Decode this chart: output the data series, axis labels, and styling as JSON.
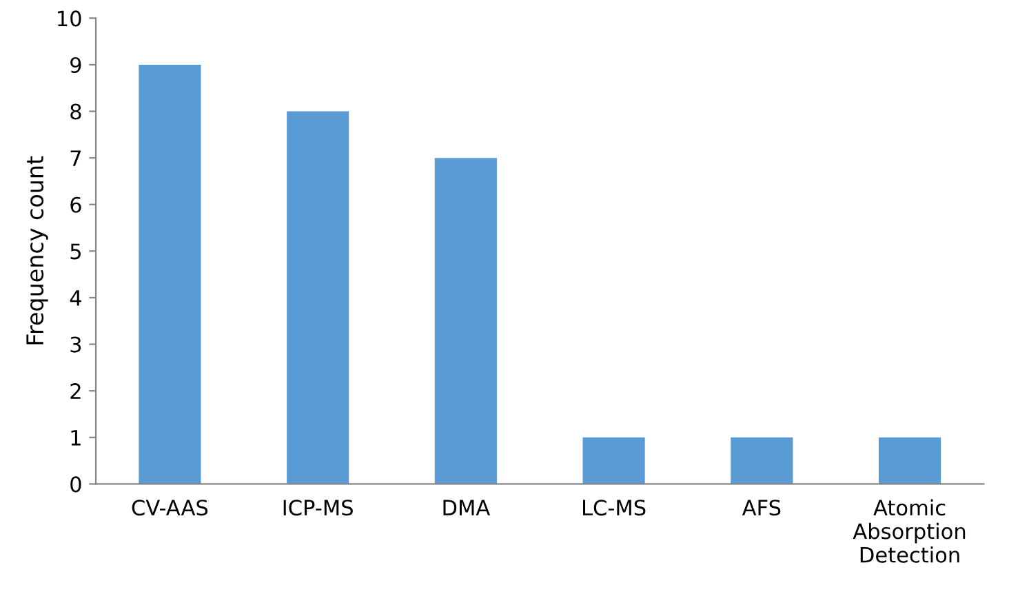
{
  "chart_data": {
    "type": "bar",
    "ylabel": "Frequency count",
    "categories": [
      "CV-AAS",
      "ICP-MS",
      "DMA",
      "LC-MS",
      "AFS",
      "Atomic Absorption Detection"
    ],
    "values": [
      9,
      8,
      7,
      1,
      1,
      1
    ],
    "color": "#5b9bd5",
    "ylim": [
      0,
      10
    ],
    "yticks": [
      0,
      1,
      2,
      3,
      4,
      5,
      6,
      7,
      8,
      9,
      10
    ],
    "grid": false,
    "legend": false
  }
}
